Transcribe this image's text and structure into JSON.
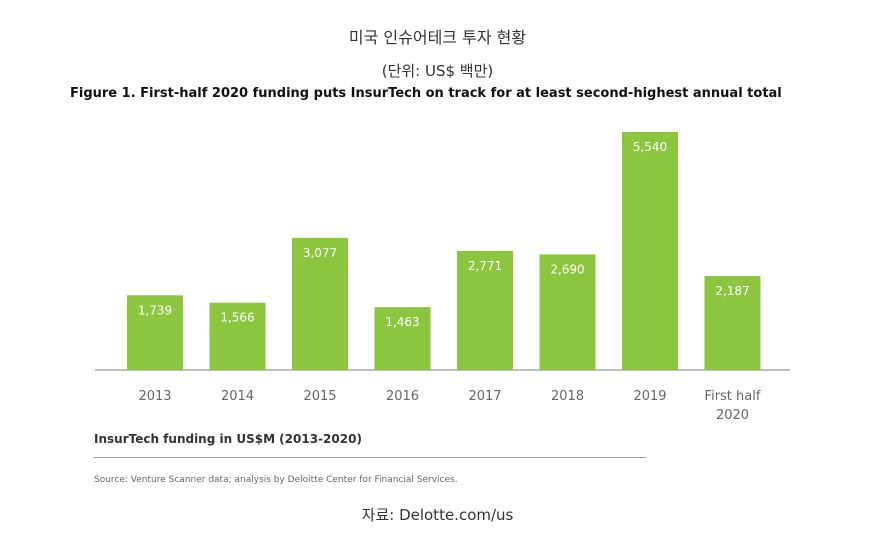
{
  "header": {
    "title": "미국 인슈어테크 투자 현황",
    "unit": "(단위: US$ 백만)"
  },
  "figure": {
    "title": "Figure 1. First-half 2020 funding puts InsurTech on track for at least second-highest annual total",
    "caption": "InsurTech funding in US$M (2013-2020)",
    "source": "Source: Venture Scanner data; analysis by Deloitte Center for Financial Services."
  },
  "footer": {
    "source": "자료: Delotte.com/us"
  },
  "chart_data": {
    "type": "bar",
    "categories": [
      "2013",
      "2014",
      "2015",
      "2016",
      "2017",
      "2018",
      "2019",
      "First half 2020"
    ],
    "values": [
      1739,
      1566,
      3077,
      1463,
      2771,
      2690,
      5540,
      2187
    ],
    "value_labels": [
      "1,739",
      "1,566",
      "3,077",
      "1,463",
      "2,771",
      "2,690",
      "5,540",
      "2,187"
    ],
    "title": "",
    "xlabel": "",
    "ylabel": "",
    "ylim": [
      0,
      5540
    ],
    "grid": false,
    "bar_color": "#8cc63f"
  }
}
